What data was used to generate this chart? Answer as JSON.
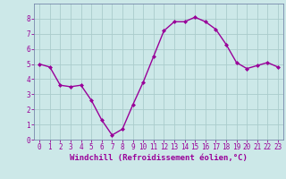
{
  "x": [
    0,
    1,
    2,
    3,
    4,
    5,
    6,
    7,
    8,
    9,
    10,
    11,
    12,
    13,
    14,
    15,
    16,
    17,
    18,
    19,
    20,
    21,
    22,
    23
  ],
  "y": [
    5.0,
    4.8,
    3.6,
    3.5,
    3.6,
    2.6,
    1.3,
    0.3,
    0.7,
    2.3,
    3.8,
    5.5,
    7.2,
    7.8,
    7.8,
    8.1,
    7.8,
    7.3,
    6.3,
    5.1,
    4.7,
    4.9,
    5.1,
    4.8
  ],
  "line_color": "#990099",
  "marker": "D",
  "marker_size": 2.0,
  "bg_color": "#cce8e8",
  "grid_color": "#aacccc",
  "xlabel": "Windchill (Refroidissement éolien,°C)",
  "xlabel_color": "#990099",
  "tick_color": "#990099",
  "ylim": [
    0,
    9
  ],
  "xlim": [
    -0.5,
    23.5
  ],
  "yticks": [
    0,
    1,
    2,
    3,
    4,
    5,
    6,
    7,
    8
  ],
  "xticks": [
    0,
    1,
    2,
    3,
    4,
    5,
    6,
    7,
    8,
    9,
    10,
    11,
    12,
    13,
    14,
    15,
    16,
    17,
    18,
    19,
    20,
    21,
    22,
    23
  ],
  "tick_fontsize": 5.5,
  "xlabel_fontsize": 6.5,
  "line_width": 1.0,
  "spine_color": "#7788aa"
}
